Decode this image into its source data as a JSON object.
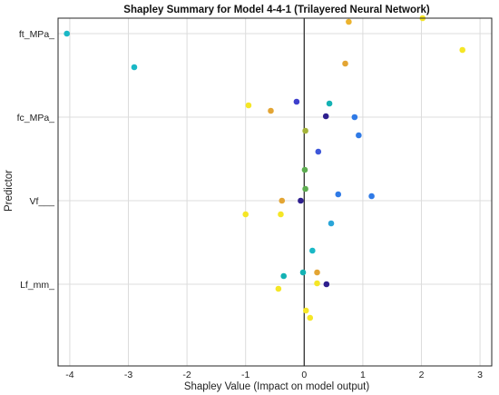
{
  "chart_data": {
    "type": "scatter",
    "title": "Shapley Summary for Model 4-4-1 (Trilayered Neural Network)",
    "xlabel": "Shapley Value (Impact on model output)",
    "ylabel": "Predictor",
    "xlim": [
      -4.2,
      3.2
    ],
    "xticks": [
      -4,
      -3,
      -2,
      -1,
      0,
      1,
      2,
      3
    ],
    "xtick_labels": [
      "-4",
      "-3",
      "-2",
      "-1",
      "0",
      "1",
      "2",
      "3"
    ],
    "grid": true,
    "categories": [
      "ft_MPa_",
      "fc_MPa_",
      "Vf___",
      "Lf_mm_"
    ],
    "points": [
      {
        "predictor": "ft_MPa_",
        "x": -4.05,
        "offset": 0.0,
        "color": "#1ab8c6"
      },
      {
        "predictor": "ft_MPa_",
        "x": 0.76,
        "offset": 0.13,
        "color": "#ecb32e"
      },
      {
        "predictor": "ft_MPa_",
        "x": 2.02,
        "offset": 0.17,
        "color": "#f5e626"
      },
      {
        "predictor": "ft_MPa_",
        "x": 2.7,
        "offset": -0.18,
        "color": "#f5e626"
      },
      {
        "predictor": "ft_MPa_",
        "x": 0.7,
        "offset": -0.33,
        "color": "#e3a534"
      },
      {
        "predictor": "ft_MPa_",
        "x": -2.9,
        "offset": -0.37,
        "color": "#1ab8c6"
      },
      {
        "predictor": "fc_MPa_",
        "x": -0.13,
        "offset": 0.17,
        "color": "#3e3fcc"
      },
      {
        "predictor": "fc_MPa_",
        "x": 0.43,
        "offset": 0.15,
        "color": "#14b2b4"
      },
      {
        "predictor": "fc_MPa_",
        "x": -0.95,
        "offset": 0.13,
        "color": "#f5e626"
      },
      {
        "predictor": "fc_MPa_",
        "x": -0.57,
        "offset": 0.07,
        "color": "#e3a534"
      },
      {
        "predictor": "fc_MPa_",
        "x": 0.37,
        "offset": 0.01,
        "color": "#2e1f8e"
      },
      {
        "predictor": "fc_MPa_",
        "x": 0.86,
        "offset": 0.0,
        "color": "#2f7ae6"
      },
      {
        "predictor": "fc_MPa_",
        "x": 0.02,
        "offset": -0.15,
        "color": "#a4b338"
      },
      {
        "predictor": "fc_MPa_",
        "x": 0.93,
        "offset": -0.2,
        "color": "#2f7ae6"
      },
      {
        "predictor": "fc_MPa_",
        "x": 0.24,
        "offset": -0.38,
        "color": "#3e57d9"
      },
      {
        "predictor": "Vf___",
        "x": 0.01,
        "offset": 0.34,
        "color": "#5cac4f"
      },
      {
        "predictor": "Vf___",
        "x": 0.02,
        "offset": 0.13,
        "color": "#5cac4f"
      },
      {
        "predictor": "Vf___",
        "x": 0.58,
        "offset": 0.07,
        "color": "#2f7ae6"
      },
      {
        "predictor": "Vf___",
        "x": 1.15,
        "offset": 0.05,
        "color": "#2f7ae6"
      },
      {
        "predictor": "Vf___",
        "x": -0.06,
        "offset": 0.0,
        "color": "#2e1f8e"
      },
      {
        "predictor": "Vf___",
        "x": -0.38,
        "offset": 0.0,
        "color": "#e3a534"
      },
      {
        "predictor": "Vf___",
        "x": -1.0,
        "offset": -0.15,
        "color": "#f5e626"
      },
      {
        "predictor": "Vf___",
        "x": -0.4,
        "offset": -0.15,
        "color": "#f5e626"
      },
      {
        "predictor": "Vf___",
        "x": 0.46,
        "offset": -0.25,
        "color": "#2aa5d8"
      },
      {
        "predictor": "Lf_mm_",
        "x": 0.14,
        "offset": 0.37,
        "color": "#1ab8c6"
      },
      {
        "predictor": "Lf_mm_",
        "x": -0.02,
        "offset": 0.13,
        "color": "#14b2b4"
      },
      {
        "predictor": "Lf_mm_",
        "x": 0.22,
        "offset": 0.13,
        "color": "#e3a534"
      },
      {
        "predictor": "Lf_mm_",
        "x": -0.35,
        "offset": 0.09,
        "color": "#14b2b4"
      },
      {
        "predictor": "Lf_mm_",
        "x": 0.22,
        "offset": 0.01,
        "color": "#f5e626"
      },
      {
        "predictor": "Lf_mm_",
        "x": 0.38,
        "offset": 0.0,
        "color": "#2e1f8e"
      },
      {
        "predictor": "Lf_mm_",
        "x": -0.44,
        "offset": -0.05,
        "color": "#f5e626"
      },
      {
        "predictor": "Lf_mm_",
        "x": 0.03,
        "offset": -0.29,
        "color": "#f5e626"
      },
      {
        "predictor": "Lf_mm_",
        "x": 0.1,
        "offset": -0.37,
        "color": "#f5e626"
      }
    ]
  }
}
